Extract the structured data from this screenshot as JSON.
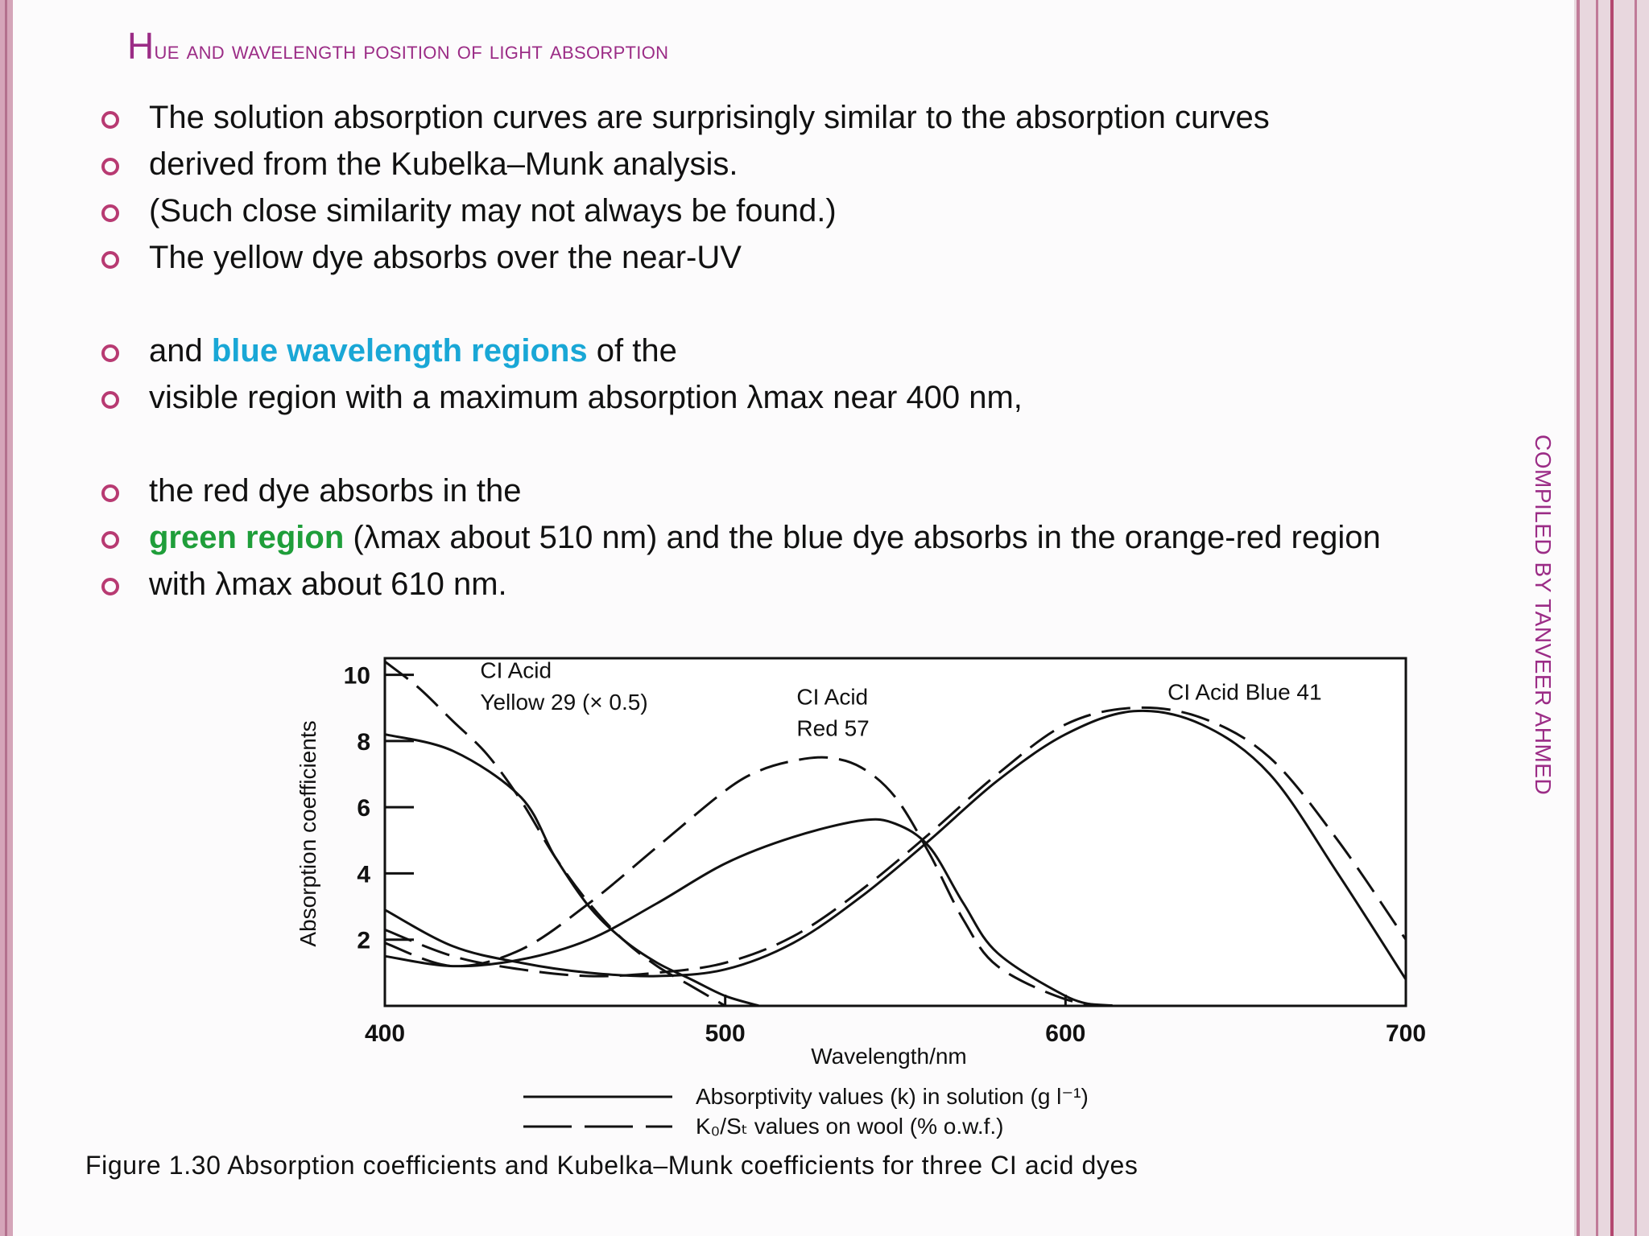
{
  "title": "Hue and wavelength position of light absorption",
  "side_label": "COMPILED BY TANVEER AHMED",
  "bullets": [
    {
      "text": "The solution absorption curves are surprisingly similar to the absorption curves"
    },
    {
      "text": "derived from the Kubelka–Munk analysis."
    },
    {
      "text": "(Such close similarity may not always be found.)"
    },
    {
      "text": "The yellow dye absorbs over the near-UV"
    },
    {
      "pre": "and ",
      "highlight": "blue wavelength regions",
      "post": " of the"
    },
    {
      "text": "visible region with a maximum absorption λmax near 400 nm,"
    },
    {
      "text": "the red dye absorbs in the"
    },
    {
      "highlight": "green region",
      "post": " (λmax about 510 nm) and the blue dye absorbs in the orange-red region"
    },
    {
      "text": "with λmax about 610 nm."
    }
  ],
  "colors": {
    "title": "#9b2c86",
    "bullet_marker": "#b83a72",
    "highlight_blue": "#19a7d6",
    "highlight_green": "#1f9e3a"
  },
  "figure": {
    "caption": "Figure 1.30 Absorption coefficients and Kubelka–Munk coefficients for three CI acid dyes",
    "legend": {
      "solid": "Absorptivity values (k) in solution (g l⁻¹)",
      "dashed": "K₀/Sₜ values on wool (% o.w.f.)"
    }
  },
  "chart_data": {
    "type": "line",
    "xlabel": "Wavelength/nm",
    "ylabel": "Absorption coefficients",
    "xlim": [
      400,
      700
    ],
    "ylim": [
      0,
      10.5
    ],
    "x_ticks": [
      400,
      500,
      600,
      700
    ],
    "y_ticks": [
      2,
      4,
      6,
      8,
      10
    ],
    "grid": false,
    "annotations": [
      {
        "text": "CI Acid",
        "x": 428,
        "y": 9.9
      },
      {
        "text": "Yellow 29 (× 0.5)",
        "x": 428,
        "y": 8.95
      },
      {
        "text": "CI Acid",
        "x": 521,
        "y": 9.1
      },
      {
        "text": "Red 57",
        "x": 521,
        "y": 8.15
      },
      {
        "text": "CI Acid Blue 41",
        "x": 630,
        "y": 9.25
      }
    ],
    "series": [
      {
        "dye": "CI Acid Yellow 29 (× 0.5)",
        "style": "solid",
        "x": [
          400,
          420,
          440,
          450,
          460,
          470,
          480,
          490,
          500,
          510
        ],
        "y": [
          8.2,
          7.7,
          6.3,
          4.5,
          3.0,
          2.0,
          1.3,
          0.8,
          0.3,
          0.0
        ]
      },
      {
        "dye": "CI Acid Yellow 29 (× 0.5)",
        "style": "dashed",
        "x": [
          400,
          410,
          420,
          430,
          440,
          450,
          460,
          470,
          480,
          490,
          500
        ],
        "y": [
          10.4,
          9.6,
          8.6,
          7.6,
          6.2,
          4.5,
          3.1,
          2.0,
          1.2,
          0.6,
          0.0
        ]
      },
      {
        "dye": "CI Acid Red 57",
        "style": "solid",
        "x": [
          400,
          420,
          440,
          460,
          480,
          500,
          520,
          540,
          550,
          560,
          570,
          580,
          600,
          610
        ],
        "y": [
          1.5,
          1.2,
          1.4,
          2.0,
          3.1,
          4.3,
          5.1,
          5.6,
          5.5,
          4.8,
          3.1,
          1.6,
          0.3,
          0.0
        ]
      },
      {
        "dye": "CI Acid Red 57",
        "style": "dashed",
        "x": [
          400,
          420,
          440,
          460,
          480,
          500,
          510,
          520,
          530,
          540,
          550,
          560,
          570,
          580,
          600,
          615
        ],
        "y": [
          1.9,
          1.2,
          1.7,
          3.1,
          4.8,
          6.5,
          7.1,
          7.4,
          7.5,
          7.2,
          6.3,
          4.6,
          2.6,
          1.2,
          0.2,
          0.0
        ]
      },
      {
        "dye": "CI Acid Blue 41",
        "style": "solid",
        "x": [
          400,
          420,
          440,
          460,
          480,
          500,
          520,
          540,
          560,
          580,
          600,
          620,
          640,
          660,
          680,
          700
        ],
        "y": [
          2.9,
          1.8,
          1.3,
          1.0,
          0.9,
          1.1,
          1.9,
          3.3,
          5.0,
          6.8,
          8.2,
          8.9,
          8.5,
          7.0,
          4.0,
          0.8
        ]
      },
      {
        "dye": "CI Acid Blue 41",
        "style": "dashed",
        "x": [
          400,
          420,
          440,
          460,
          480,
          500,
          520,
          540,
          560,
          580,
          600,
          620,
          640,
          660,
          680,
          700
        ],
        "y": [
          2.3,
          1.5,
          1.1,
          0.9,
          1.0,
          1.3,
          2.1,
          3.5,
          5.2,
          7.0,
          8.5,
          9.0,
          8.7,
          7.5,
          5.0,
          2.0
        ]
      }
    ]
  }
}
